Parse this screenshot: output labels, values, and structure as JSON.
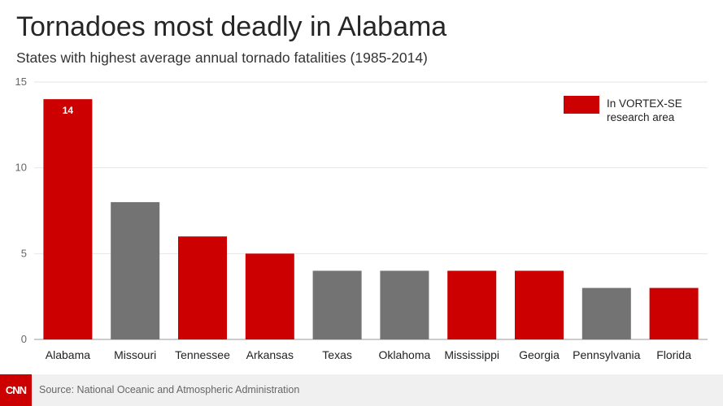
{
  "title": "Tornadoes most deadly in Alabama",
  "subtitle": "States with highest average annual tornado fatalities (1985-2014)",
  "source": "Source: National Oceanic and Atmospheric Administration",
  "logo_text": "CNN",
  "colors": {
    "vortex": "#cc0000",
    "other": "#737373",
    "grid": "#e6e6e6",
    "axis": "#999999",
    "logo": "#cc0000"
  },
  "chart_data": {
    "type": "bar",
    "title": "Tornadoes most deadly in Alabama",
    "subtitle": "States with highest average annual tornado fatalities (1985-2014)",
    "xlabel": "",
    "ylabel": "",
    "ylim": [
      0,
      15
    ],
    "yticks": [
      0,
      5,
      10,
      15
    ],
    "grid": true,
    "categories": [
      "Alabama",
      "Missouri",
      "Tennessee",
      "Arkansas",
      "Texas",
      "Oklahoma",
      "Mississippi",
      "Georgia",
      "Pennsylvania",
      "Florida"
    ],
    "values": [
      14,
      8,
      6,
      5,
      4,
      4,
      4,
      4,
      3,
      3
    ],
    "in_vortex_se": [
      true,
      false,
      true,
      true,
      false,
      false,
      true,
      true,
      false,
      true
    ],
    "data_labels": [
      {
        "index": 0,
        "text": "14"
      }
    ],
    "legend": {
      "placement": "top-right",
      "entries": [
        {
          "label": "In VORTEX-SE research area",
          "lines": [
            "In VORTEX-SE",
            "research area"
          ],
          "color": "#cc0000"
        }
      ]
    }
  }
}
